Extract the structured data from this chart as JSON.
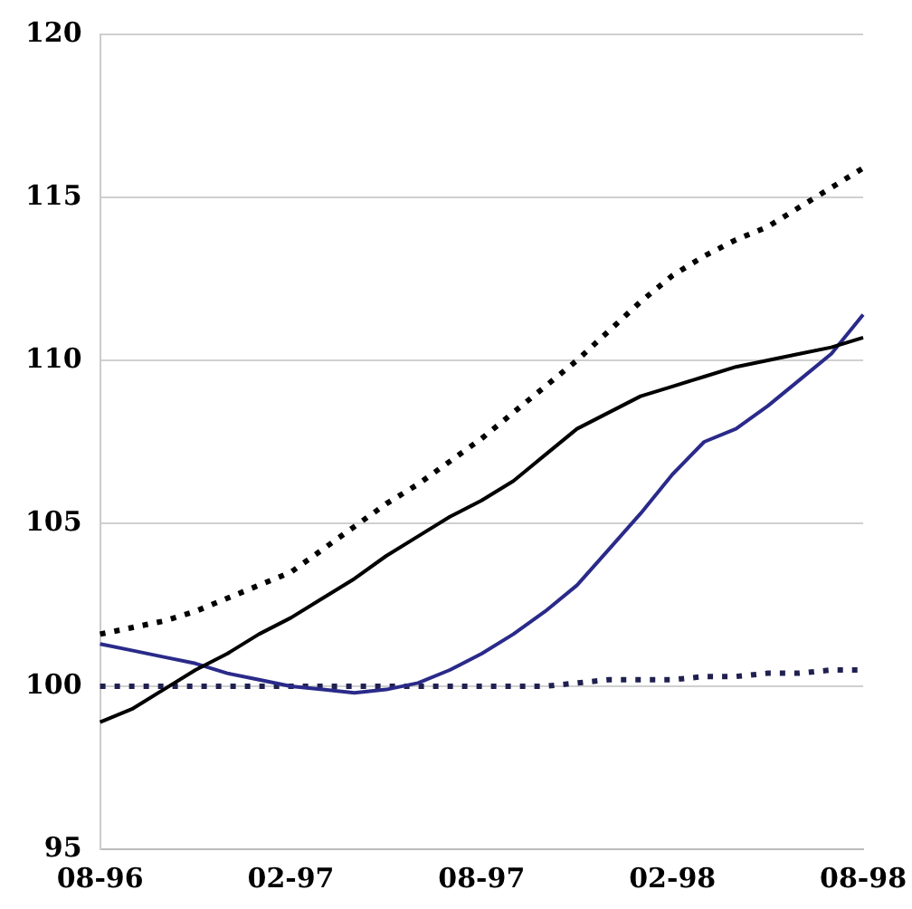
{
  "chart_data": {
    "type": "line",
    "categories": [
      "08-96",
      null,
      null,
      null,
      null,
      null,
      "02-97",
      null,
      null,
      null,
      null,
      null,
      "08-97",
      null,
      null,
      null,
      null,
      null,
      "02-98",
      null,
      null,
      null,
      null,
      null,
      "08-98"
    ],
    "series": [
      {
        "color": "#000000",
        "line_style": "dotted",
        "values": [
          101.6,
          101.8,
          102.0,
          102.3,
          102.7,
          103.1,
          103.5,
          104.2,
          104.9,
          105.6,
          106.2,
          106.9,
          107.6,
          108.4,
          109.2,
          110.0,
          110.9,
          111.8,
          112.6,
          113.2,
          113.7,
          114.1,
          114.7,
          115.3,
          115.9
        ]
      },
      {
        "color": "#000000",
        "line_style": "solid",
        "values": [
          98.9,
          99.3,
          99.9,
          100.5,
          101.0,
          101.6,
          102.1,
          102.7,
          103.3,
          104.0,
          104.6,
          105.2,
          105.7,
          106.3,
          107.1,
          107.9,
          108.4,
          108.9,
          109.2,
          109.5,
          109.8,
          110.0,
          110.2,
          110.4,
          110.7
        ]
      },
      {
        "color": "#2a2a8a",
        "line_style": "solid",
        "values": [
          101.3,
          101.1,
          100.9,
          100.7,
          100.4,
          100.2,
          100.0,
          99.9,
          99.8,
          99.9,
          100.1,
          100.5,
          101.0,
          101.6,
          102.3,
          103.1,
          104.2,
          105.3,
          106.5,
          107.5,
          107.9,
          108.6,
          109.4,
          110.2,
          111.4
        ]
      },
      {
        "color": "#202050",
        "line_style": "dotted",
        "values": [
          100.0,
          100.0,
          100.0,
          100.0,
          100.0,
          100.0,
          100.0,
          100.0,
          100.0,
          100.0,
          100.0,
          100.0,
          100.0,
          100.0,
          100.0,
          100.1,
          100.2,
          100.2,
          100.2,
          100.3,
          100.3,
          100.4,
          100.4,
          100.5,
          100.5
        ]
      }
    ],
    "ylim": [
      95,
      120
    ],
    "yticks": [
      95,
      100,
      105,
      110,
      115,
      120
    ],
    "grid": "y",
    "legend": false,
    "marker": "none"
  }
}
